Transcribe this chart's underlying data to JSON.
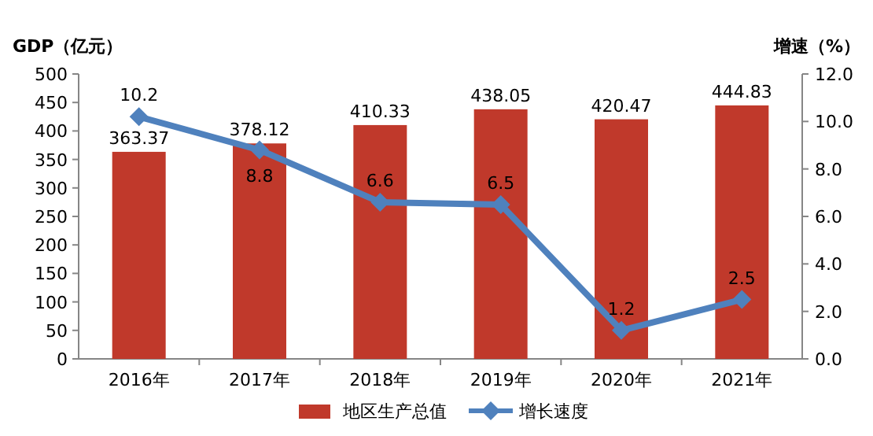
{
  "chart_data": {
    "type": "bar",
    "ylabel": "GDP（亿元）",
    "y2label": "增速（%）",
    "categories": [
      "2016年",
      "2017年",
      "2018年",
      "2019年",
      "2020年",
      "2021年"
    ],
    "series": [
      {
        "name": "地区生产总值",
        "color": "#c0392b",
        "values": [
          363.37,
          378.12,
          410.33,
          438.05,
          420.47,
          444.83
        ]
      },
      {
        "name": "增长速度",
        "type": "line",
        "axis": "y2",
        "color": "#4f81bd",
        "values": [
          10.2,
          8.8,
          6.6,
          6.5,
          1.2,
          2.5
        ]
      }
    ],
    "ylim": [
      0,
      500
    ],
    "yticks": [
      0,
      50,
      100,
      150,
      200,
      250,
      300,
      350,
      400,
      450,
      500
    ],
    "y2lim": [
      0,
      12
    ],
    "y2ticks": [
      {
        "value": 0,
        "label": "0.0"
      },
      {
        "value": 2,
        "label": "2.0"
      },
      {
        "value": 4,
        "label": "4.0"
      },
      {
        "value": 6,
        "label": "6.0"
      },
      {
        "value": 8,
        "label": "8.0"
      },
      {
        "value": 10,
        "label": "10.0"
      },
      {
        "value": 12,
        "label": "12.0"
      }
    ],
    "marker": "diamond",
    "data_labels": true,
    "legend": "bottom",
    "grid": false
  }
}
